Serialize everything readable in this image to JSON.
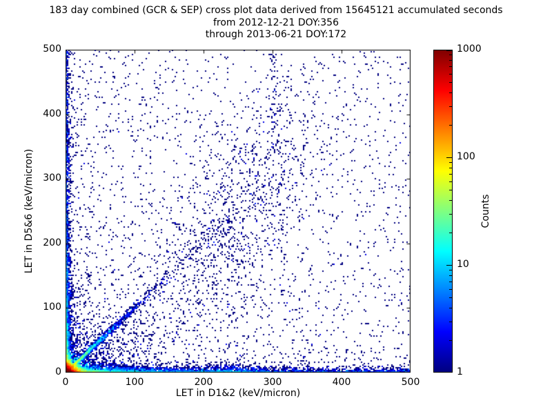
{
  "chart_data": {
    "type": "scatter",
    "subtype": "2d-histogram-density",
    "title_lines": [
      "183 day combined (GCR & SEP) cross plot data derived from 15645121 accumulated seconds",
      "from 2012-12-21 DOY:356",
      "through 2013-06-21 DOY:172"
    ],
    "xlabel": "LET in D1&2 (keV/micron)",
    "ylabel": "LET in D5&6 (keV/micron)",
    "xlim": [
      0,
      500
    ],
    "ylim": [
      0,
      500
    ],
    "x_ticks": [
      0,
      100,
      200,
      300,
      400,
      500
    ],
    "x_tick_labels": [
      "0",
      "100",
      "200",
      "300",
      "400",
      "500"
    ],
    "y_ticks": [
      0,
      100,
      200,
      300,
      400,
      500
    ],
    "y_tick_labels": [
      "0",
      "100",
      "200",
      "300",
      "400",
      "500"
    ],
    "grid": false,
    "colorbar": {
      "label": "Counts",
      "scale": "log",
      "range": [
        1,
        1000
      ],
      "ticks": [
        1,
        10,
        100,
        1000
      ],
      "tick_labels": [
        "1",
        "10",
        "100",
        "1000"
      ],
      "colormap": "jet",
      "colormap_stops": [
        "#000080",
        "#0000ff",
        "#0080ff",
        "#00ffff",
        "#80ff80",
        "#ffff00",
        "#ff8000",
        "#ff0000",
        "#800000"
      ]
    },
    "seed": 20121221,
    "features": [
      {
        "name": "hot-core",
        "type": "exp2d",
        "n": 4000,
        "sx": 5,
        "sy": 4.5,
        "w": 8
      },
      {
        "name": "diagonal-band",
        "type": "diagonal",
        "n": 2600,
        "scale": 28,
        "tail_scale": 90,
        "tail_frac": 0.15,
        "jx": 0.03,
        "jbase": 0.9,
        "w": 1
      },
      {
        "name": "lower-fan",
        "type": "fan",
        "n": 900,
        "scale": 45,
        "ratio": 0.95,
        "pow": 1.7,
        "w": 1
      },
      {
        "name": "upper-fan",
        "type": "fan_up",
        "n": 500,
        "scale": 40,
        "ratio": 0.95,
        "pow": 1.7,
        "w": 1
      },
      {
        "name": "x-axis-band",
        "type": "bandx",
        "n": 5200,
        "scale": 60,
        "ufrac": 0.35,
        "thick": 3,
        "w": 1
      },
      {
        "name": "x-axis-cluster",
        "type": "bandx_cluster",
        "n": 450,
        "cx": 235,
        "sx": 30,
        "thick": 3.5,
        "w": 1
      },
      {
        "name": "y-axis-band",
        "type": "bandy",
        "n": 3600,
        "scale": 70,
        "ufrac": 0.3,
        "thick": 2.5,
        "w": 1
      },
      {
        "name": "mid-cloud",
        "type": "cloud",
        "n": 900,
        "cx": 250,
        "sx": 60,
        "slope": 0.95,
        "sy": 75,
        "w": 1
      },
      {
        "name": "vertical-streak",
        "type": "vstreak",
        "n": 70,
        "x": 303,
        "sx": 5,
        "ymin": 340,
        "ymax": 495,
        "w": 1
      },
      {
        "name": "background",
        "type": "background",
        "n": 2600,
        "ufrac": 0.25,
        "pow": 1.7,
        "w": 1
      }
    ]
  }
}
